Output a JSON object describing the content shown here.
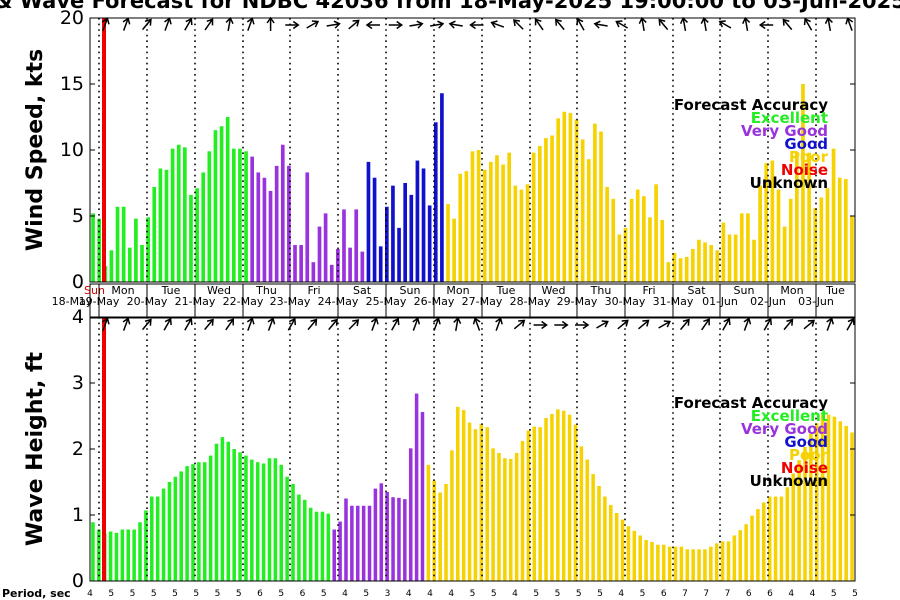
{
  "title": "& Wave Forecast for NDBC 42036 from 18-May-2025 19:00:00 to 03-Jun-2025",
  "colors": {
    "Excellent": "#22ee22",
    "Very Good": "#9933dd",
    "Good": "#1111cc",
    "Poor": "#f5d200",
    "Noise": "#ee0000",
    "Unknown": "#000000"
  },
  "days": [
    {
      "name": "Sun",
      "date": "18-May"
    },
    {
      "name": "Mon",
      "date": "19-May"
    },
    {
      "name": "Tue",
      "date": "20-May"
    },
    {
      "name": "Wed",
      "date": "21-May"
    },
    {
      "name": "Thu",
      "date": "22-May"
    },
    {
      "name": "Fri",
      "date": "23-May"
    },
    {
      "name": "Sat",
      "date": "24-May"
    },
    {
      "name": "Sun",
      "date": "25-May"
    },
    {
      "name": "Mon",
      "date": "26-May"
    },
    {
      "name": "Tue",
      "date": "27-May"
    },
    {
      "name": "Wed",
      "date": "28-May"
    },
    {
      "name": "Thu",
      "date": "29-May"
    },
    {
      "name": "Fri",
      "date": "30-May"
    },
    {
      "name": "Sat",
      "date": "31-May"
    },
    {
      "name": "Sun",
      "date": "01-Jun"
    },
    {
      "name": "Mon",
      "date": "02-Jun"
    },
    {
      "name": "Tue",
      "date": "03-Jun"
    }
  ],
  "legend": {
    "title": "Forecast Accuracy",
    "items": [
      "Excellent",
      "Very Good",
      "Good",
      "Poor",
      "Noise",
      "Unknown"
    ]
  },
  "period_label": "Period, sec",
  "periods": [
    "4",
    "5",
    "5",
    "5",
    "5",
    "5",
    "5",
    "5",
    "6",
    "5",
    "6",
    "5",
    "4",
    "5",
    "3",
    "4",
    "4",
    "4",
    "5",
    "5",
    "4",
    "5",
    "5",
    "5",
    "5",
    "4",
    "5",
    "6",
    "7",
    "7",
    "7",
    "6",
    "6",
    "4",
    "4",
    "5",
    "5"
  ],
  "chart_data": [
    {
      "type": "bar",
      "ylabel": "Wind Speed, kts",
      "ylim": [
        0,
        20
      ],
      "yticks": [
        0,
        5,
        10,
        15,
        20
      ],
      "values": [
        5.2,
        4.8,
        1.2,
        2.4,
        5.7,
        5.7,
        2.6,
        4.8,
        2.8,
        4.9,
        7.2,
        8.6,
        8.5,
        10.1,
        10.4,
        10.2,
        6.6,
        7.1,
        8.3,
        9.9,
        11.5,
        11.8,
        12.5,
        10.1,
        10.1,
        9.9,
        9.5,
        8.3,
        7.9,
        6.9,
        8.8,
        10.4,
        8.8,
        2.8,
        2.8,
        8.3,
        1.5,
        4.2,
        5.2,
        1.3,
        2.5,
        5.5,
        2.6,
        5.5,
        2.3,
        9.1,
        7.9,
        2.7,
        5.7,
        7.3,
        4.1,
        7.5,
        6.6,
        9.2,
        8.6,
        5.8,
        12.1,
        14.3,
        5.9,
        4.8,
        8.2,
        8.4,
        9.9,
        10.0,
        8.5,
        9.1,
        9.6,
        8.9,
        9.8,
        7.3,
        7.0,
        7.4,
        9.8,
        10.3,
        10.9,
        11.1,
        12.4,
        12.9,
        12.8,
        12.3,
        10.8,
        9.3,
        12.0,
        11.4,
        7.2,
        6.3,
        3.6,
        4.1,
        6.3,
        7.0,
        6.5,
        4.9,
        7.4,
        4.7,
        1.5,
        2.2,
        1.8,
        1.9,
        2.5,
        3.2,
        3.0,
        2.8,
        2.4,
        4.5,
        3.6,
        3.6,
        5.2,
        5.2,
        3.2,
        7.3,
        9.0,
        9.2,
        7.0,
        4.2,
        6.3,
        9.8,
        15.0,
        9.8,
        5.6,
        6.4,
        7.1,
        10.1,
        7.9,
        7.8,
        5.0
      ],
      "accuracy": [
        "Excellent",
        "Excellent",
        "Excellent",
        "Excellent",
        "Excellent",
        "Excellent",
        "Excellent",
        "Excellent",
        "Excellent",
        "Excellent",
        "Excellent",
        "Excellent",
        "Excellent",
        "Excellent",
        "Excellent",
        "Excellent",
        "Excellent",
        "Excellent",
        "Excellent",
        "Excellent",
        "Excellent",
        "Excellent",
        "Excellent",
        "Excellent",
        "Excellent",
        "Excellent",
        "Very Good",
        "Very Good",
        "Very Good",
        "Very Good",
        "Very Good",
        "Very Good",
        "Very Good",
        "Very Good",
        "Very Good",
        "Very Good",
        "Very Good",
        "Very Good",
        "Very Good",
        "Very Good",
        "Very Good",
        "Very Good",
        "Very Good",
        "Very Good",
        "Very Good",
        "Good",
        "Good",
        "Good",
        "Good",
        "Good",
        "Good",
        "Good",
        "Good",
        "Good",
        "Good",
        "Good",
        "Good",
        "Good",
        "Poor",
        "Poor",
        "Poor",
        "Poor",
        "Poor",
        "Poor",
        "Poor",
        "Poor",
        "Poor",
        "Poor",
        "Poor",
        "Poor",
        "Poor",
        "Poor",
        "Poor",
        "Poor",
        "Poor",
        "Poor",
        "Poor",
        "Poor",
        "Poor",
        "Poor",
        "Poor",
        "Poor",
        "Poor",
        "Poor",
        "Poor",
        "Poor",
        "Poor",
        "Poor",
        "Poor",
        "Poor",
        "Poor",
        "Poor",
        "Poor",
        "Poor",
        "Poor",
        "Poor",
        "Poor",
        "Poor",
        "Poor",
        "Poor",
        "Poor",
        "Poor",
        "Poor",
        "Poor",
        "Poor",
        "Poor",
        "Poor",
        "Poor",
        "Poor",
        "Poor",
        "Poor",
        "Poor",
        "Poor",
        "Poor",
        "Poor",
        "Poor",
        "Poor",
        "Poor",
        "Poor",
        "Poor",
        "Poor",
        "Poor",
        "Poor",
        "Poor",
        "Poor",
        "Poor",
        "Poor",
        "Poor"
      ]
    },
    {
      "type": "bar",
      "ylabel": "Wave Height, ft",
      "ylim": [
        0,
        4
      ],
      "yticks": [
        0,
        1,
        2,
        3,
        4
      ],
      "values": [
        0.89,
        0.78,
        0.72,
        0.75,
        0.73,
        0.78,
        0.78,
        0.78,
        0.89,
        1.07,
        1.28,
        1.28,
        1.4,
        1.5,
        1.58,
        1.66,
        1.74,
        1.77,
        1.8,
        1.8,
        1.9,
        2.08,
        2.18,
        2.11,
        2.0,
        1.95,
        1.9,
        1.84,
        1.8,
        1.78,
        1.86,
        1.86,
        1.76,
        1.58,
        1.47,
        1.31,
        1.23,
        1.11,
        1.05,
        1.05,
        1.02,
        0.78,
        0.9,
        1.25,
        1.14,
        1.14,
        1.14,
        1.14,
        1.4,
        1.48,
        1.35,
        1.27,
        1.26,
        1.24,
        2.01,
        2.84,
        2.56,
        1.76,
        1.52,
        1.34,
        1.47,
        1.98,
        2.64,
        2.59,
        2.4,
        2.3,
        2.38,
        2.33,
        2.01,
        1.94,
        1.86,
        1.85,
        1.94,
        2.12,
        2.28,
        2.34,
        2.33,
        2.47,
        2.53,
        2.6,
        2.58,
        2.52,
        2.37,
        2.04,
        1.84,
        1.62,
        1.44,
        1.28,
        1.15,
        1.03,
        0.93,
        0.83,
        0.76,
        0.69,
        0.62,
        0.59,
        0.55,
        0.55,
        0.52,
        0.52,
        0.52,
        0.48,
        0.48,
        0.48,
        0.48,
        0.52,
        0.57,
        0.6,
        0.6,
        0.69,
        0.77,
        0.86,
        0.99,
        1.09,
        1.19,
        1.28,
        1.28,
        1.28,
        1.42,
        1.63,
        1.83,
        2.03,
        2.23,
        2.39,
        2.52,
        2.52,
        2.49,
        2.42,
        2.35,
        2.25
      ],
      "accuracy": [
        "Excellent",
        "Excellent",
        "Excellent",
        "Excellent",
        "Excellent",
        "Excellent",
        "Excellent",
        "Excellent",
        "Excellent",
        "Excellent",
        "Excellent",
        "Excellent",
        "Excellent",
        "Excellent",
        "Excellent",
        "Excellent",
        "Excellent",
        "Excellent",
        "Excellent",
        "Excellent",
        "Excellent",
        "Excellent",
        "Excellent",
        "Excellent",
        "Excellent",
        "Excellent",
        "Excellent",
        "Excellent",
        "Excellent",
        "Excellent",
        "Excellent",
        "Excellent",
        "Excellent",
        "Excellent",
        "Excellent",
        "Excellent",
        "Excellent",
        "Excellent",
        "Excellent",
        "Excellent",
        "Excellent",
        "Very Good",
        "Very Good",
        "Very Good",
        "Very Good",
        "Very Good",
        "Very Good",
        "Very Good",
        "Very Good",
        "Very Good",
        "Very Good",
        "Very Good",
        "Very Good",
        "Very Good",
        "Very Good",
        "Very Good",
        "Very Good",
        "Poor",
        "Poor",
        "Poor",
        "Poor",
        "Poor",
        "Poor",
        "Poor",
        "Poor",
        "Poor",
        "Poor",
        "Poor",
        "Poor",
        "Poor",
        "Poor",
        "Poor",
        "Poor",
        "Poor",
        "Poor",
        "Poor",
        "Poor",
        "Poor",
        "Poor",
        "Poor",
        "Poor",
        "Poor",
        "Poor",
        "Poor",
        "Poor",
        "Poor",
        "Poor",
        "Poor",
        "Poor",
        "Poor",
        "Poor",
        "Poor",
        "Poor",
        "Poor",
        "Poor",
        "Poor",
        "Poor",
        "Poor",
        "Poor",
        "Poor",
        "Poor",
        "Poor",
        "Poor",
        "Poor",
        "Poor",
        "Poor",
        "Poor",
        "Poor",
        "Poor",
        "Poor",
        "Poor",
        "Poor",
        "Poor",
        "Poor",
        "Poor",
        "Poor",
        "Poor",
        "Poor",
        "Poor",
        "Poor",
        "Poor",
        "Poor",
        "Poor",
        "Poor",
        "Poor",
        "Poor",
        "Poor",
        "Poor",
        "Poor",
        "Poor"
      ]
    }
  ],
  "arrow_dirs_wind": [
    200,
    200,
    220,
    200,
    210,
    215,
    190,
    200,
    180,
    270,
    240,
    260,
    230,
    90,
    270,
    260,
    260,
    100,
    90,
    110,
    135,
    145,
    140,
    150,
    100,
    120,
    170,
    140,
    170,
    170,
    120,
    170,
    90,
    140,
    150,
    170,
    160
  ],
  "arrow_dirs_wave": [
    200,
    200,
    220,
    210,
    210,
    220,
    215,
    200,
    200,
    210,
    220,
    220,
    225,
    200,
    210,
    200,
    200,
    190,
    160,
    200,
    230,
    270,
    270,
    270,
    240,
    230,
    230,
    240,
    220,
    215,
    210,
    200,
    210,
    220,
    230,
    200,
    210
  ]
}
